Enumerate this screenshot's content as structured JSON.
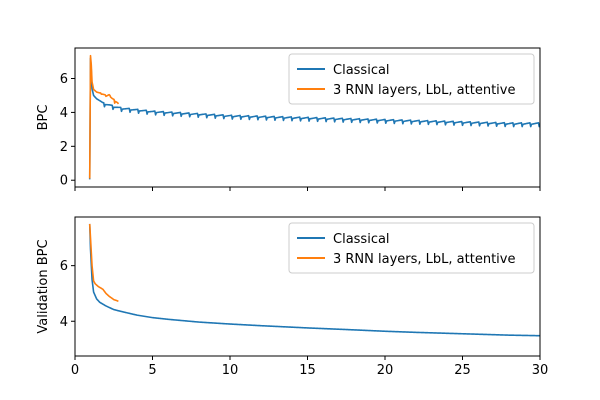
{
  "chart_data": [
    {
      "type": "line",
      "ylabel": "BPC",
      "xlim": [
        0,
        30
      ],
      "ylim": [
        -0.4,
        7.8
      ],
      "yticks": [
        0,
        2,
        4,
        6
      ],
      "xticks": [
        0,
        5,
        10,
        15,
        20,
        25,
        30
      ],
      "show_xtick_labels": false,
      "legend": {
        "placement": "top-right"
      },
      "series": [
        {
          "name": "Classical",
          "color": "#1f77b4",
          "x": [
            0.95,
            1.0,
            1.05,
            1.1,
            1.2,
            1.4,
            1.6,
            1.8,
            2.0,
            2.2,
            2.5,
            3.0,
            3.5,
            4.0,
            5.0,
            6.0,
            7.0,
            8.0,
            9.0,
            10.0,
            12.0,
            14.0,
            16.0,
            18.0,
            20.0,
            22.0,
            24.0,
            26.0,
            28.0,
            30.0
          ],
          "values": [
            0.05,
            7.2,
            6.5,
            5.4,
            5.0,
            4.8,
            4.65,
            4.5,
            4.45,
            4.4,
            4.3,
            4.2,
            4.15,
            4.1,
            4.0,
            3.95,
            3.9,
            3.85,
            3.8,
            3.75,
            3.7,
            3.65,
            3.6,
            3.55,
            3.5,
            3.45,
            3.4,
            3.35,
            3.3,
            3.3
          ],
          "oscillation_amplitude": 0.15,
          "oscillation_period": 0.55
        },
        {
          "name": "3 RNN layers, LbL, attentive",
          "color": "#ff7f0e",
          "x": [
            0.95,
            1.0,
            1.05,
            1.1,
            1.2,
            1.4,
            1.6,
            1.8,
            2.0,
            2.2,
            2.4,
            2.6,
            2.8
          ],
          "values": [
            0.1,
            7.35,
            6.8,
            5.8,
            5.35,
            5.2,
            5.1,
            5.05,
            4.95,
            5.0,
            4.8,
            4.65,
            4.5
          ],
          "oscillation_amplitude": 0.1,
          "oscillation_period": 0.3
        }
      ]
    },
    {
      "type": "line",
      "ylabel": "Validation BPC",
      "xlim": [
        0,
        30
      ],
      "ylim": [
        2.75,
        7.75
      ],
      "yticks": [
        4,
        6
      ],
      "xticks": [
        0,
        5,
        10,
        15,
        20,
        25,
        30
      ],
      "show_xtick_labels": true,
      "legend": {
        "placement": "top-right"
      },
      "series": [
        {
          "name": "Classical",
          "color": "#1f77b4",
          "x": [
            0.95,
            1.0,
            1.1,
            1.2,
            1.4,
            1.6,
            2.0,
            2.5,
            3.0,
            4.0,
            5.0,
            6.0,
            8.0,
            10.0,
            12.0,
            15.0,
            18.0,
            20.0,
            22.0,
            25.0,
            28.0,
            30.0
          ],
          "values": [
            7.5,
            6.6,
            5.5,
            5.05,
            4.8,
            4.68,
            4.55,
            4.42,
            4.35,
            4.22,
            4.13,
            4.07,
            3.97,
            3.9,
            3.84,
            3.76,
            3.69,
            3.64,
            3.6,
            3.55,
            3.5,
            3.48
          ]
        },
        {
          "name": "3 RNN layers, LbL, attentive",
          "color": "#ff7f0e",
          "x": [
            0.95,
            1.0,
            1.1,
            1.2,
            1.3,
            1.5,
            1.8,
            2.0,
            2.2,
            2.5,
            2.8
          ],
          "values": [
            7.5,
            7.0,
            6.0,
            5.45,
            5.35,
            5.25,
            5.15,
            5.0,
            4.9,
            4.78,
            4.72
          ]
        }
      ]
    }
  ]
}
